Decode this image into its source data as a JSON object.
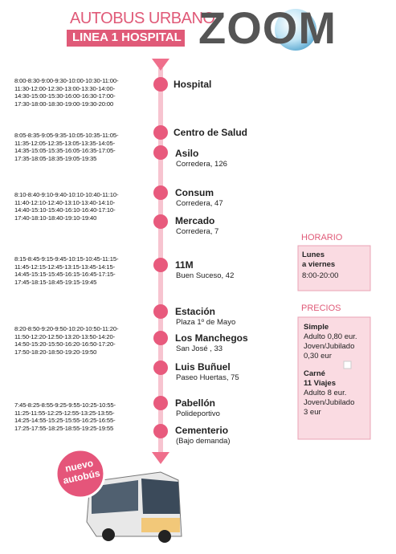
{
  "header": {
    "title": "AUTOBUS URBANO",
    "line": "LINEA 1 HOSPITAL",
    "logo": "ZOOM"
  },
  "timetables": [
    [
      "8:00-8:30-9:00-9:30-10:00-10:30-11:00-",
      "11:30-12:00-12:30-13:00-13:30-14:00-",
      "14:30-15:00-15:30-16:00-16:30-17:00-",
      "17:30-18:00-18:30-19:00-19:30-20:00"
    ],
    [
      "8:05-8:35-9:05-9:35-10:05-10:35-11:05-",
      "11:35-12:05-12:35-13:05-13:35-14:05-",
      "14:35-15:05-15:35-16:05-16:35-17:05-",
      "17:35-18:05-18:35-19:05-19:35"
    ],
    [
      "8:10-8:40-9:10-9:40-10:10-10:40-11:10-",
      "11:40-12:10-12:40-13:10-13:40-14:10-",
      "14:40-15:10-15:40-16:10-16:40-17:10-",
      "17:40-18:10-18:40-19:10-19:40"
    ],
    [
      "8:15-8:45-9:15-9:45-10:15-10:45-11:15-",
      "11:45-12:15-12:45-13:15-13:45-14:15-",
      "14:45-15:15-15:45-16:15-16:45-17:15-",
      "17:45-18:15-18:45-19:15-19:45"
    ],
    [
      "8:20-8:50-9:20-9:50-10:20-10:50-11:20-",
      "11:50-12:20-12:50-13:20-13:50-14:20-",
      "14:50-15:20-15:50-16:20-16:50-17:20-",
      "17:50-18:20-18:50-19:20-19:50"
    ],
    [
      "7:45-8:25-8:55-9:25-9:55-10:25-10:55-",
      "11:25-11:55-12:25-12:55-13:25-13:55-",
      "14:25-14:55-15:25-15:55-16:25-16:55-",
      "17:25-17:55-18:25-18:55-19:25-19:55"
    ]
  ],
  "stops": [
    {
      "name": "Hospital"
    },
    {
      "name": "Centro de Salud"
    },
    {
      "name": "Asilo",
      "address": "Corredera, 126"
    },
    {
      "name": "Consum",
      "address": "Corredera, 47"
    },
    {
      "name": "Mercado",
      "address": "Corredera, 7"
    },
    {
      "name": "11M",
      "address": "Buen Suceso, 42"
    },
    {
      "name": "Estación",
      "address": "Plaza 1º de Mayo"
    },
    {
      "name": "Los Manchegos",
      "address": "San José , 33"
    },
    {
      "name": "Luis Buñuel",
      "address": "Paseo Huertas, 75"
    },
    {
      "name": "Pabellón",
      "address": "Polideportivo"
    },
    {
      "name": "Cementerio",
      "address": "(Bajo demanda)"
    }
  ],
  "schedule": {
    "heading": "HORARIO",
    "days": [
      "Lunes",
      "a viernes"
    ],
    "hours": "8:00-20:00"
  },
  "prices": {
    "heading": "PRECIOS",
    "groups": [
      {
        "title": [
          "Simple"
        ],
        "lines": [
          "Adulto 0,80 eur.",
          "Joven/Jubilado",
          "0,30 eur"
        ]
      },
      {
        "title": [
          "Carné",
          "11 Viajes"
        ],
        "lines": [
          "Adulto 8 eur.",
          "Joven/Jubilado",
          "3 eur"
        ]
      }
    ]
  },
  "badge": [
    "nuevo",
    "autobús"
  ]
}
